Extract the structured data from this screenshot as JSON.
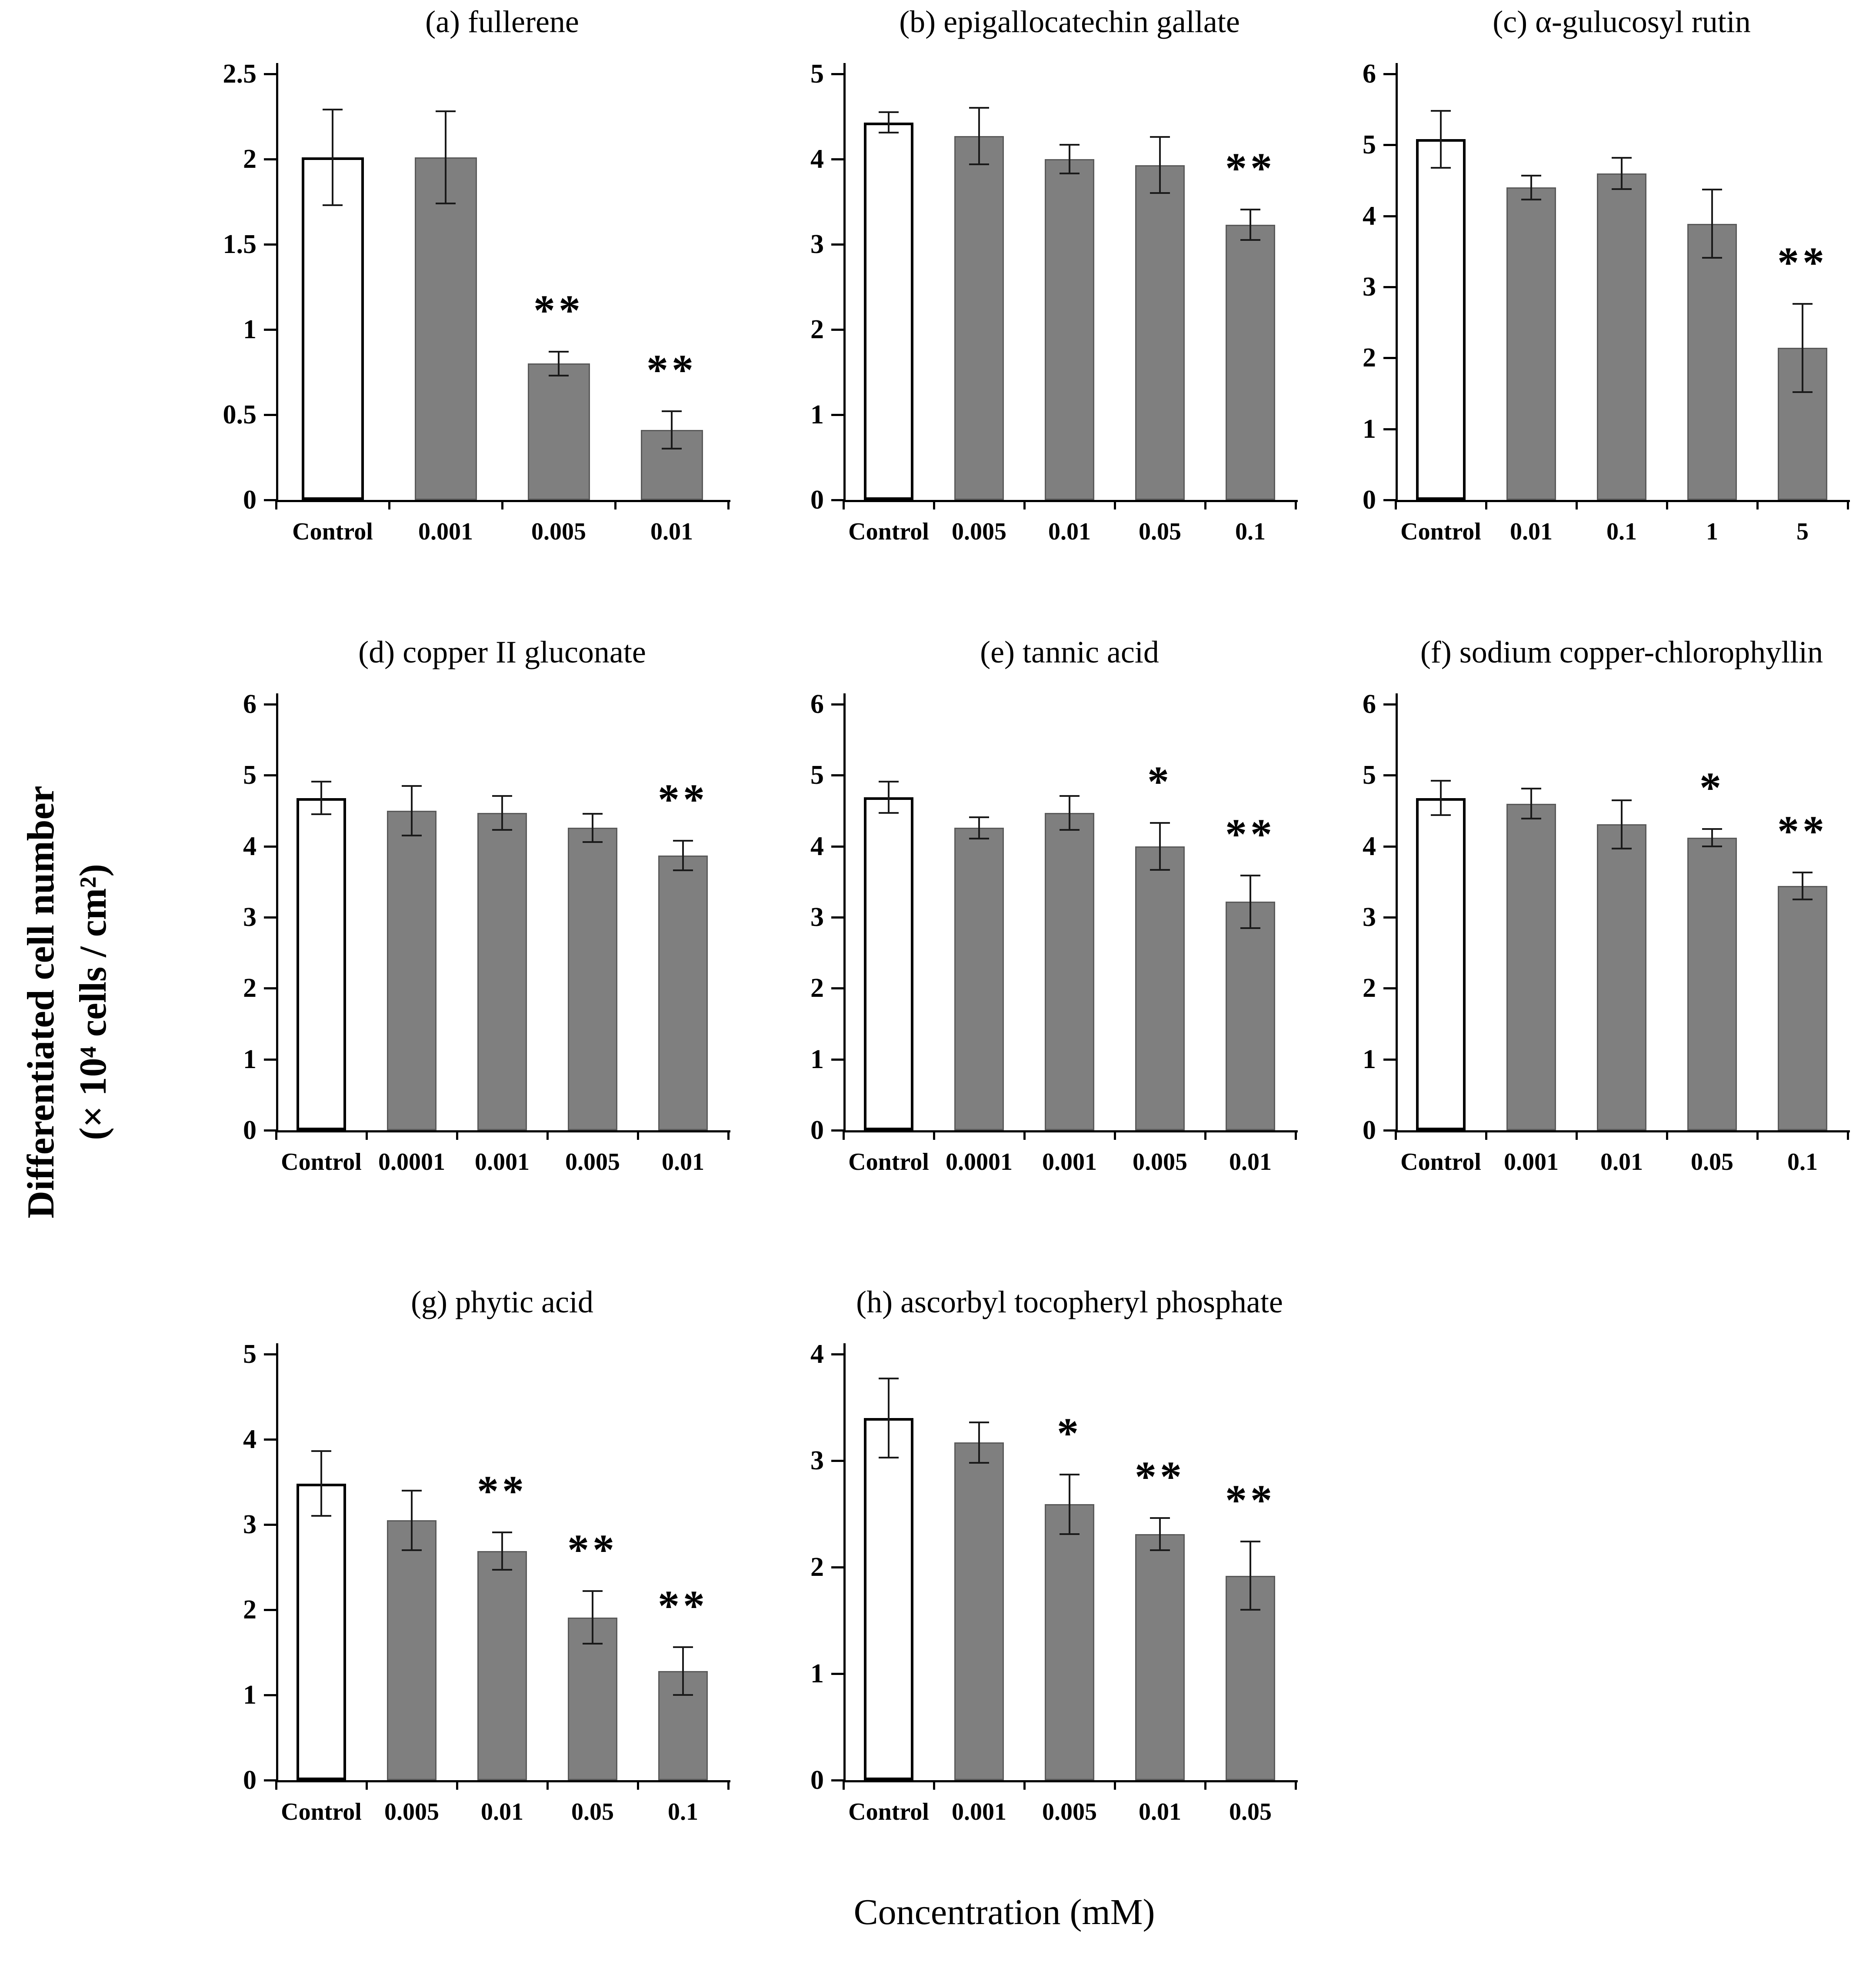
{
  "figure": {
    "ylabel_line1": "Differentiated cell number",
    "ylabel_line2": "(× 10⁴ cells / cm²)",
    "xlabel": "Concentration (mM)"
  },
  "colors": {
    "control_fill": "#ffffff",
    "treatment_fill": "#7f7f7f",
    "bar_border": "#000000",
    "treatment_border": "#5a5a5a",
    "error_bar": "#1a1a1a",
    "axis": "#000000"
  },
  "chart_data": [
    {
      "panel": "a",
      "type": "bar",
      "title": "(a) fullerene",
      "categories": [
        "Control",
        "0.001",
        "0.005",
        "0.01"
      ],
      "values": [
        2.01,
        2.01,
        0.8,
        0.41
      ],
      "errors": [
        0.28,
        0.27,
        0.07,
        0.11
      ],
      "significance": [
        "",
        "",
        "**",
        "**"
      ],
      "ylim": [
        0,
        2.5
      ],
      "yticks": [
        0,
        0.5,
        1,
        1.5,
        2,
        2.5
      ]
    },
    {
      "panel": "b",
      "type": "bar",
      "title": "(b) epigallocatechin gallate",
      "categories": [
        "Control",
        "0.005",
        "0.01",
        "0.05",
        "0.1"
      ],
      "values": [
        4.43,
        4.27,
        4.0,
        3.93,
        3.23
      ],
      "errors": [
        0.12,
        0.33,
        0.17,
        0.33,
        0.18
      ],
      "significance": [
        "",
        "",
        "",
        "",
        "**"
      ],
      "ylim": [
        0,
        5
      ],
      "yticks": [
        0,
        1,
        2,
        3,
        4,
        5
      ]
    },
    {
      "panel": "c",
      "type": "bar",
      "title": "(c) α-gulucosyl rutin",
      "categories": [
        "Control",
        "0.01",
        "0.1",
        "1",
        "5"
      ],
      "values": [
        5.08,
        4.4,
        4.6,
        3.89,
        2.14
      ],
      "errors": [
        0.4,
        0.17,
        0.22,
        0.48,
        0.62
      ],
      "significance": [
        "",
        "",
        "",
        "",
        "**"
      ],
      "ylim": [
        0,
        6
      ],
      "yticks": [
        0,
        1,
        2,
        3,
        4,
        5,
        6
      ]
    },
    {
      "panel": "d",
      "type": "bar",
      "title": "(d) copper II gluconate",
      "categories": [
        "Control",
        "0.0001",
        "0.001",
        "0.005",
        "0.01"
      ],
      "values": [
        4.68,
        4.5,
        4.47,
        4.26,
        3.87
      ],
      "errors": [
        0.23,
        0.35,
        0.24,
        0.2,
        0.21
      ],
      "significance": [
        "",
        "",
        "",
        "",
        "**"
      ],
      "ylim": [
        0,
        6
      ],
      "yticks": [
        0,
        1,
        2,
        3,
        4,
        5,
        6
      ]
    },
    {
      "panel": "e",
      "type": "bar",
      "title": "(e) tannic acid",
      "categories": [
        "Control",
        "0.0001",
        "0.001",
        "0.005",
        "0.01"
      ],
      "values": [
        4.69,
        4.26,
        4.47,
        4.0,
        3.22
      ],
      "errors": [
        0.22,
        0.15,
        0.24,
        0.33,
        0.37
      ],
      "significance": [
        "",
        "",
        "",
        "*",
        "**"
      ],
      "ylim": [
        0,
        6
      ],
      "yticks": [
        0,
        1,
        2,
        3,
        4,
        5,
        6
      ]
    },
    {
      "panel": "f",
      "type": "bar",
      "title": "(f) sodium copper-chlorophyllin",
      "categories": [
        "Control",
        "0.001",
        "0.01",
        "0.05",
        "0.1"
      ],
      "values": [
        4.68,
        4.6,
        4.31,
        4.12,
        3.44
      ],
      "errors": [
        0.24,
        0.21,
        0.34,
        0.12,
        0.19
      ],
      "significance": [
        "",
        "",
        "",
        "*",
        "**"
      ],
      "ylim": [
        0,
        6
      ],
      "yticks": [
        0,
        1,
        2,
        3,
        4,
        5,
        6
      ]
    },
    {
      "panel": "g",
      "type": "bar",
      "title": "(g) phytic acid",
      "categories": [
        "Control",
        "0.005",
        "0.01",
        "0.05",
        "0.1"
      ],
      "values": [
        3.48,
        3.05,
        2.69,
        1.91,
        1.28
      ],
      "errors": [
        0.38,
        0.35,
        0.22,
        0.31,
        0.28
      ],
      "significance": [
        "",
        "",
        "**",
        "**",
        "**"
      ],
      "ylim": [
        0,
        5
      ],
      "yticks": [
        0,
        1,
        2,
        3,
        4,
        5
      ]
    },
    {
      "panel": "h",
      "type": "bar",
      "title": "(h) ascorbyl tocopheryl phosphate",
      "categories": [
        "Control",
        "0.001",
        "0.005",
        "0.01",
        "0.05"
      ],
      "values": [
        3.4,
        3.17,
        2.59,
        2.31,
        1.92
      ],
      "errors": [
        0.37,
        0.19,
        0.28,
        0.15,
        0.32
      ],
      "significance": [
        "",
        "",
        "*",
        "**",
        "**"
      ],
      "ylim": [
        0,
        4
      ],
      "yticks": [
        0,
        1,
        2,
        3,
        4
      ]
    }
  ]
}
